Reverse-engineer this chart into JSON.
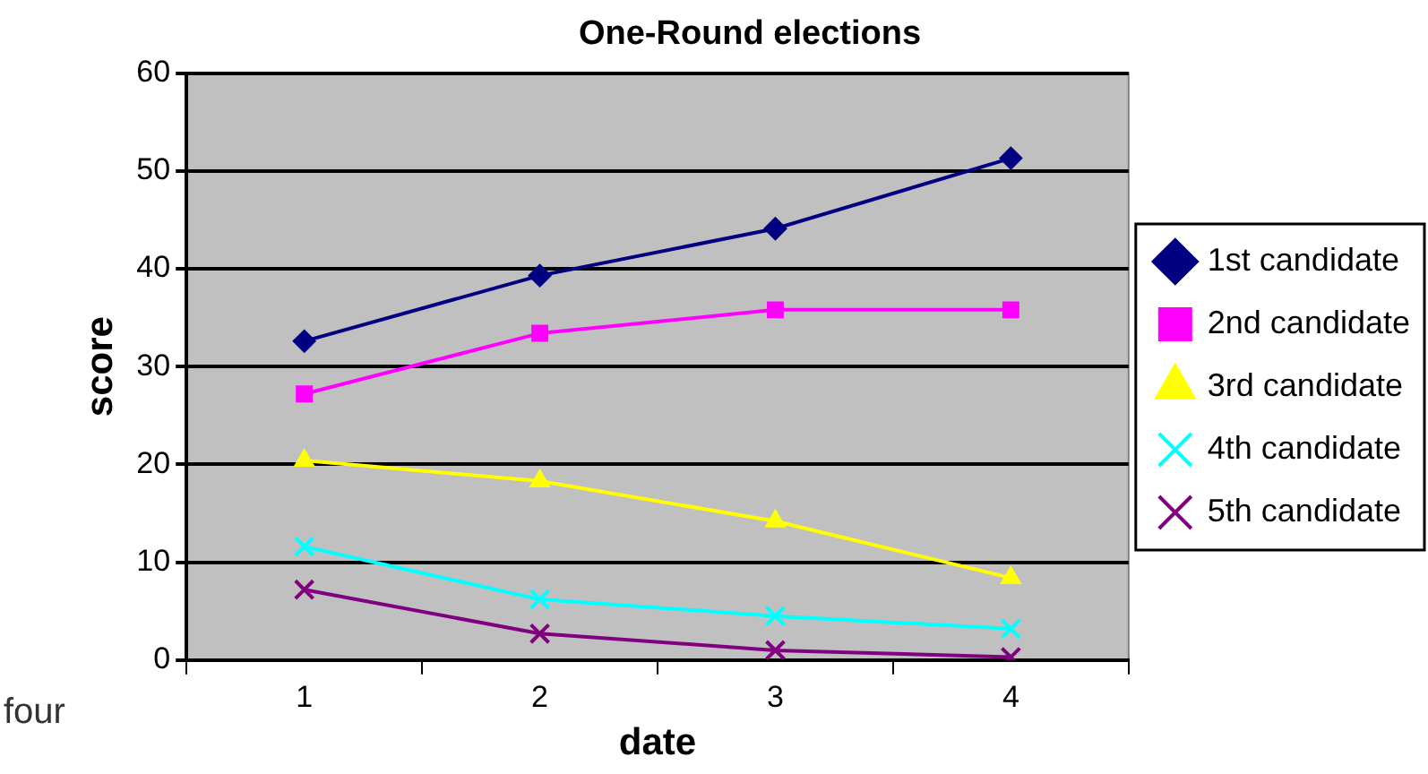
{
  "chart_data": {
    "type": "line",
    "title": "One-Round elections",
    "xlabel": "date",
    "ylabel": "score",
    "categories": [
      "1",
      "2",
      "3",
      "4"
    ],
    "series": [
      {
        "name": "1st candidate",
        "color": "#000080",
        "marker": "diamond",
        "values": [
          32.6,
          39.3,
          44.1,
          51.3
        ]
      },
      {
        "name": "2nd candidate",
        "color": "#ff00ff",
        "marker": "square",
        "values": [
          27.2,
          33.4,
          35.8,
          35.8
        ]
      },
      {
        "name": "3rd candidate",
        "color": "#ffff00",
        "marker": "triangle",
        "values": [
          20.4,
          18.3,
          14.2,
          8.4
        ]
      },
      {
        "name": "4th candidate",
        "color": "#00ffff",
        "marker": "cross",
        "values": [
          11.6,
          6.2,
          4.5,
          3.2
        ]
      },
      {
        "name": "5th candidate",
        "color": "#800080",
        "marker": "cross",
        "values": [
          7.2,
          2.7,
          1.0,
          0.3
        ]
      }
    ],
    "ylim": [
      0,
      60
    ],
    "yticks": [
      0,
      10,
      20,
      30,
      40,
      50,
      60
    ],
    "grid": "y",
    "legend": "right",
    "annotations": [
      "four"
    ]
  }
}
